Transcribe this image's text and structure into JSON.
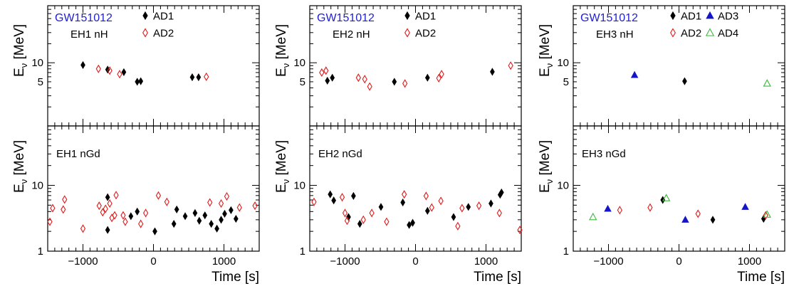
{
  "figure": {
    "x_axis_title": "Time [s]",
    "y_axis_title_main": "E",
    "y_axis_title_sub": "ν",
    "y_axis_title_unit": " [MeV]",
    "event_label": "GW151012",
    "event_label_color": "#1f1fd1"
  },
  "styles": {
    "AD1": {
      "marker": "filled-diamond",
      "color": "#000000"
    },
    "AD2": {
      "marker": "open-diamond",
      "color": "#e01b1b"
    },
    "AD3": {
      "marker": "filled-triangle",
      "color": "#1515c8"
    },
    "AD4": {
      "marker": "open-triangle",
      "color": "#3db83d"
    }
  },
  "chart_data": [
    {
      "type": "scatter",
      "panel": "EH1 nH",
      "label": "EH1 nH",
      "xlim": [
        -1500,
        1500
      ],
      "ylim": [
        1,
        80
      ],
      "log_y": true,
      "yticks": [
        5,
        10
      ],
      "legend": [
        "AD1",
        "AD2"
      ],
      "series": [
        {
          "name": "AD1",
          "points": [
            [
              -1000,
              9.2
            ],
            [
              -650,
              7.8
            ],
            [
              -420,
              7.1
            ],
            [
              -230,
              5.0
            ],
            [
              -180,
              5.1
            ],
            [
              550,
              5.9
            ],
            [
              640,
              5.9
            ]
          ]
        },
        {
          "name": "AD2",
          "points": [
            [
              -780,
              8.0
            ],
            [
              -620,
              7.5
            ],
            [
              -480,
              6.6
            ],
            [
              750,
              6.0
            ]
          ]
        }
      ]
    },
    {
      "type": "scatter",
      "panel": "EH1 nGd",
      "label": "EH1 nGd",
      "xlim": [
        -1500,
        1500
      ],
      "ylim": [
        1,
        80
      ],
      "log_y": true,
      "yticks": [
        1,
        10
      ],
      "legend": [],
      "series": [
        {
          "name": "AD1",
          "points": [
            [
              -650,
              6.6
            ],
            [
              -650,
              2.1
            ],
            [
              -320,
              3.4
            ],
            [
              -230,
              4.0
            ],
            [
              20,
              2.0
            ],
            [
              290,
              2.6
            ],
            [
              330,
              4.3
            ],
            [
              450,
              3.4
            ],
            [
              590,
              3.8
            ],
            [
              650,
              2.9
            ],
            [
              730,
              3.5
            ],
            [
              820,
              2.6
            ],
            [
              900,
              2.2
            ],
            [
              960,
              3.0
            ],
            [
              1010,
              3.7
            ],
            [
              1100,
              4.2
            ],
            [
              1170,
              3.1
            ]
          ]
        },
        {
          "name": "AD2",
          "points": [
            [
              -1470,
              2.8
            ],
            [
              -1430,
              4.5
            ],
            [
              -1280,
              4.3
            ],
            [
              -1260,
              6.1
            ],
            [
              -1000,
              2.2
            ],
            [
              -770,
              4.9
            ],
            [
              -720,
              3.9
            ],
            [
              -680,
              4.4
            ],
            [
              -620,
              5.3
            ],
            [
              -590,
              3.2
            ],
            [
              -550,
              3.5
            ],
            [
              -530,
              7.1
            ],
            [
              -430,
              3.5
            ],
            [
              -400,
              2.8
            ],
            [
              -180,
              2.6
            ],
            [
              -110,
              3.8
            ],
            [
              70,
              7.0
            ],
            [
              190,
              5.6
            ],
            [
              800,
              5.5
            ],
            [
              960,
              5.3
            ],
            [
              1040,
              6.8
            ],
            [
              1220,
              4.6
            ],
            [
              1440,
              4.9
            ]
          ]
        }
      ]
    },
    {
      "type": "scatter",
      "panel": "EH2 nH",
      "label": "EH2 nH",
      "xlim": [
        -1500,
        1500
      ],
      "ylim": [
        1,
        80
      ],
      "log_y": true,
      "yticks": [
        5,
        10
      ],
      "legend": [
        "AD1",
        "AD2"
      ],
      "series": [
        {
          "name": "AD1",
          "points": [
            [
              -1250,
              5.2
            ],
            [
              -1180,
              5.8
            ],
            [
              -300,
              5.0
            ],
            [
              170,
              5.8
            ],
            [
              1090,
              7.2
            ]
          ]
        },
        {
          "name": "AD2",
          "points": [
            [
              -1330,
              7.0
            ],
            [
              -1270,
              7.5
            ],
            [
              -810,
              5.8
            ],
            [
              -720,
              5.5
            ],
            [
              -650,
              4.2
            ],
            [
              -150,
              4.7
            ],
            [
              330,
              5.7
            ],
            [
              370,
              6.6
            ],
            [
              1350,
              9.0
            ]
          ]
        }
      ]
    },
    {
      "type": "scatter",
      "panel": "EH2 nGd",
      "label": "EH2 nGd",
      "xlim": [
        -1500,
        1500
      ],
      "ylim": [
        1,
        80
      ],
      "log_y": true,
      "yticks": [
        1,
        10
      ],
      "legend": [],
      "series": [
        {
          "name": "AD1",
          "points": [
            [
              -1210,
              7.3
            ],
            [
              -1160,
              5.9
            ],
            [
              -950,
              3.3
            ],
            [
              -880,
              6.9
            ],
            [
              -790,
              2.6
            ],
            [
              -490,
              4.7
            ],
            [
              -180,
              5.5
            ],
            [
              -90,
              2.5
            ],
            [
              -40,
              2.7
            ],
            [
              170,
              4.1
            ],
            [
              540,
              3.3
            ],
            [
              750,
              4.7
            ],
            [
              1070,
              5.3
            ],
            [
              1200,
              7.2
            ],
            [
              1220,
              7.8
            ]
          ]
        },
        {
          "name": "AD2",
          "points": [
            [
              -1440,
              5.6
            ],
            [
              -1040,
              6.6
            ],
            [
              -1000,
              3.8
            ],
            [
              -970,
              2.9
            ],
            [
              -740,
              3.0
            ],
            [
              -620,
              3.8
            ],
            [
              -410,
              2.8
            ],
            [
              -160,
              7.3
            ],
            [
              150,
              6.9
            ],
            [
              230,
              4.6
            ],
            [
              360,
              5.8
            ],
            [
              600,
              2.4
            ],
            [
              660,
              4.5
            ],
            [
              900,
              4.9
            ],
            [
              1190,
              3.8
            ],
            [
              1480,
              2.1
            ]
          ]
        }
      ]
    },
    {
      "type": "scatter",
      "panel": "EH3 nH",
      "label": "EH3 nH",
      "xlim": [
        -1500,
        1500
      ],
      "ylim": [
        1,
        80
      ],
      "log_y": true,
      "yticks": [
        5,
        10
      ],
      "legend": [
        "AD1",
        "AD2",
        "AD3",
        "AD4"
      ],
      "series": [
        {
          "name": "AD1",
          "points": [
            [
              80,
              5.1
            ]
          ]
        },
        {
          "name": "AD3",
          "points": [
            [
              -630,
              6.4
            ]
          ]
        },
        {
          "name": "AD4",
          "points": [
            [
              1250,
              4.7
            ]
          ]
        }
      ]
    },
    {
      "type": "scatter",
      "panel": "EH3 nGd",
      "label": "EH3 nGd",
      "xlim": [
        -1500,
        1500
      ],
      "ylim": [
        1,
        80
      ],
      "log_y": true,
      "yticks": [
        1,
        10
      ],
      "legend": [],
      "series": [
        {
          "name": "AD1",
          "points": [
            [
              -230,
              6.0
            ],
            [
              480,
              3.0
            ],
            [
              1200,
              3.1
            ]
          ]
        },
        {
          "name": "AD2",
          "points": [
            [
              -840,
              4.2
            ],
            [
              -410,
              4.6
            ],
            [
              270,
              3.7
            ],
            [
              1230,
              3.5
            ]
          ]
        },
        {
          "name": "AD3",
          "points": [
            [
              -1010,
              4.4
            ],
            [
              90,
              3.0
            ],
            [
              940,
              4.7
            ]
          ]
        },
        {
          "name": "AD4",
          "points": [
            [
              -1220,
              3.3
            ],
            [
              -180,
              6.4
            ],
            [
              1250,
              3.6
            ]
          ]
        }
      ]
    }
  ]
}
